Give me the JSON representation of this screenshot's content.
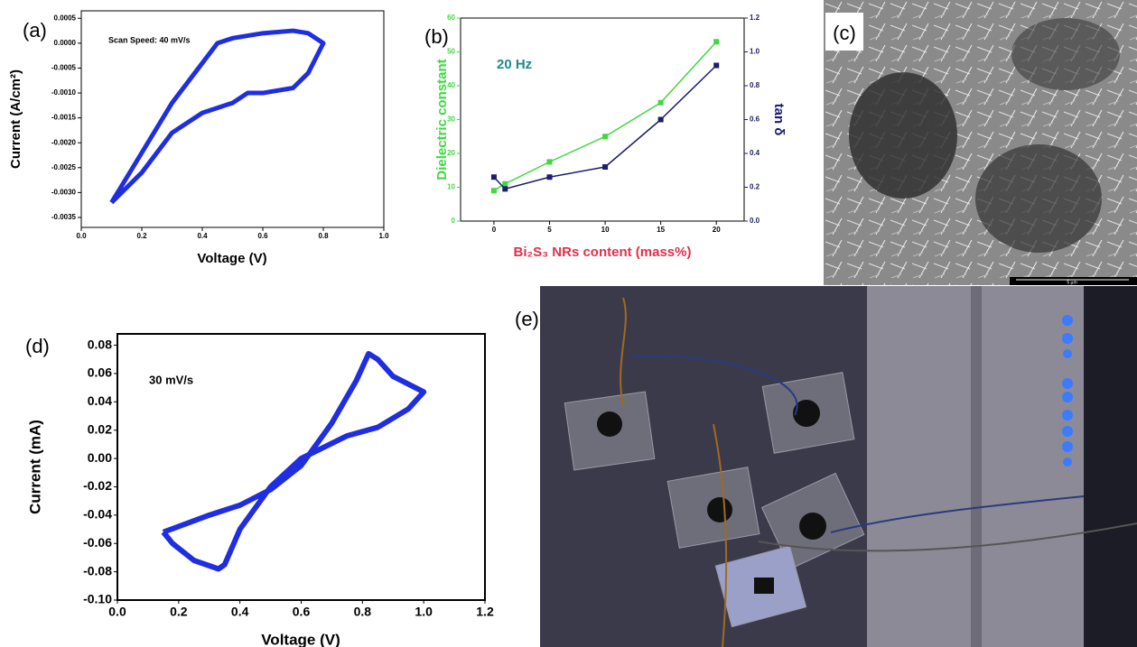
{
  "panel_labels": [
    "(a)",
    "(b)",
    "(c)",
    "(d)",
    "(e)"
  ],
  "image_texts": {
    "scale_bar": "5 µm"
  },
  "chart_data": [
    {
      "type": "line",
      "annotation": "Scan Speed: 40 mV/s",
      "xlabel": "Voltage (V)",
      "ylabel": "Current (A/cm²)",
      "x": [
        0.1,
        0.2,
        0.3,
        0.4,
        0.45,
        0.5,
        0.6,
        0.7,
        0.75,
        0.8,
        0.75,
        0.7,
        0.6,
        0.55,
        0.5,
        0.4,
        0.3,
        0.2,
        0.1
      ],
      "values": [
        -0.0032,
        -0.0022,
        -0.0012,
        -0.0004,
        0.0,
        0.0001,
        0.0002,
        0.00025,
        0.0002,
        0.0,
        -0.0006,
        -0.0009,
        -0.001,
        -0.001,
        -0.0012,
        -0.0014,
        -0.0018,
        -0.0026,
        -0.0032
      ],
      "color": "#1f2ee0",
      "xlim": [
        0,
        1
      ],
      "xticks": [
        {
          "value": 0,
          "label": "0.0"
        },
        0.2,
        0.4,
        0.6,
        0.8,
        {
          "value": 1,
          "label": "1.0"
        }
      ],
      "ylim": [
        -0.0037,
        0.00065
      ],
      "yticks": [
        0.0005,
        {
          "value": 0,
          "label": "0.0000"
        },
        -0.0005,
        {
          "value": -0.001,
          "label": "-0.0010"
        },
        -0.0015,
        {
          "value": -0.002,
          "label": "-0.0020"
        },
        -0.0025,
        {
          "value": -0.003,
          "label": "-0.0030"
        },
        -0.0035
      ]
    },
    {
      "type": "line",
      "annotation": "20 Hz",
      "xlabel": "Bi₂S₃ NRs content (mass%)",
      "ylabel": "Dielectric constant",
      "y2label": "tan δ",
      "x": [
        0,
        1,
        5,
        10,
        15,
        20
      ],
      "series": [
        {
          "color": "#3fd83f",
          "values": [
            9,
            11,
            17.5,
            25,
            35,
            53
          ]
        },
        {
          "color": "#1c1c6e",
          "axis": "y2",
          "values": [
            0.26,
            0.19,
            0.26,
            0.32,
            0.6,
            0.92
          ]
        }
      ],
      "xlim": [
        -3,
        22.5
      ],
      "xticks": [
        0,
        5,
        10,
        15,
        20
      ],
      "ylim": [
        0,
        60
      ],
      "yticks": [
        0,
        10,
        20,
        30,
        40,
        50,
        60
      ],
      "y2lim": [
        0,
        1.2
      ],
      "y2ticks": [
        {
          "value": 0,
          "label": "0.0"
        },
        0.2,
        0.4,
        0.6,
        0.8,
        {
          "value": 1,
          "label": "1.0"
        },
        1.2
      ]
    },
    {
      "type": "line",
      "annotation": "30 mV/s",
      "xlabel": "Voltage (V)",
      "ylabel": "Current (mA)",
      "x": [
        0.15,
        0.2,
        0.3,
        0.4,
        0.5,
        0.6,
        0.7,
        0.78,
        0.82,
        0.85,
        0.9,
        1.0,
        0.95,
        0.85,
        0.75,
        0.6,
        0.5,
        0.4,
        0.35,
        0.33,
        0.25,
        0.18,
        0.15
      ],
      "values": [
        -0.052,
        -0.048,
        -0.04,
        -0.033,
        -0.022,
        -0.005,
        0.025,
        0.055,
        0.074,
        0.07,
        0.058,
        0.047,
        0.035,
        0.022,
        0.016,
        0.0,
        -0.02,
        -0.05,
        -0.075,
        -0.078,
        -0.072,
        -0.06,
        -0.052
      ],
      "color": "#1f2ee0",
      "xlim": [
        0,
        1.2
      ],
      "xticks": [
        {
          "value": 0,
          "label": "0.0"
        },
        0.2,
        0.4,
        0.6,
        0.8,
        {
          "value": 1,
          "label": "1.0"
        },
        1.2
      ],
      "ylim": [
        -0.1,
        0.088
      ],
      "yticks": [
        0.08,
        0.06,
        0.04,
        0.02,
        {
          "value": 0,
          "label": "0.00"
        },
        -0.02,
        -0.04,
        -0.06,
        -0.08,
        {
          "value": -0.1,
          "label": "-0.10"
        }
      ]
    }
  ]
}
